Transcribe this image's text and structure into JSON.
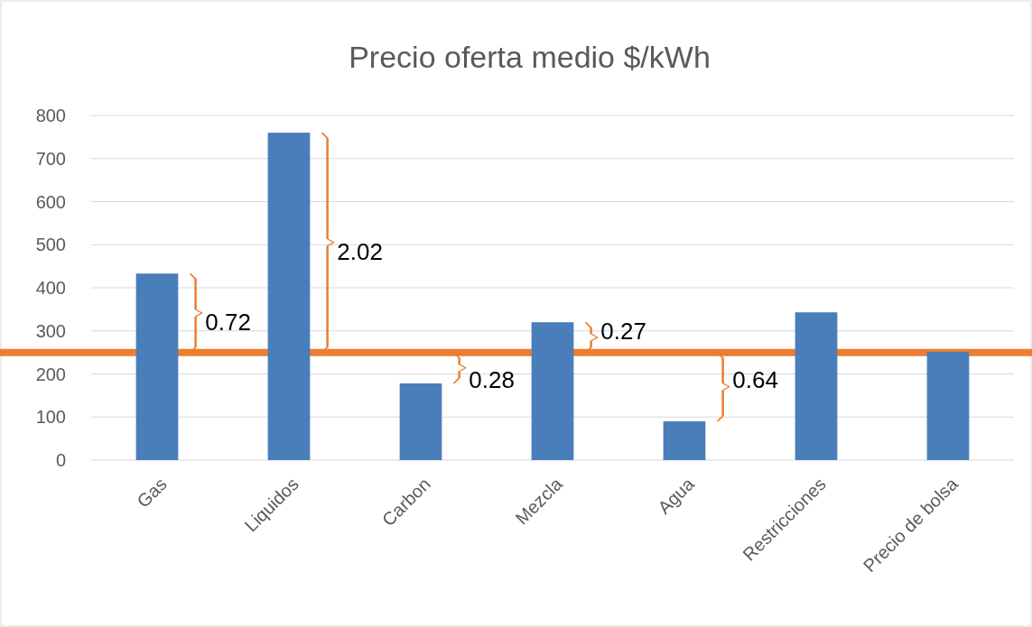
{
  "chart_data": {
    "type": "bar",
    "title": "Precio oferta medio $/kWh",
    "categories": [
      "Gas",
      "Liquidos",
      "Carbon",
      "Mezcla",
      "Agua",
      "Restricciones",
      "Precio de bolsa"
    ],
    "values": [
      433,
      760,
      178,
      320,
      90,
      343,
      251
    ],
    "color": "#4a7ebb",
    "ylim": [
      0,
      800
    ],
    "yticks": [
      0,
      100,
      200,
      300,
      400,
      500,
      600,
      700,
      800
    ],
    "grid": "y",
    "ref_lines": [
      {
        "axis": "y",
        "value": 250,
        "color": "#ed7d31"
      }
    ],
    "annotations": [
      "0.72",
      "2.02",
      "0.28",
      "0.27",
      "0.64"
    ]
  }
}
